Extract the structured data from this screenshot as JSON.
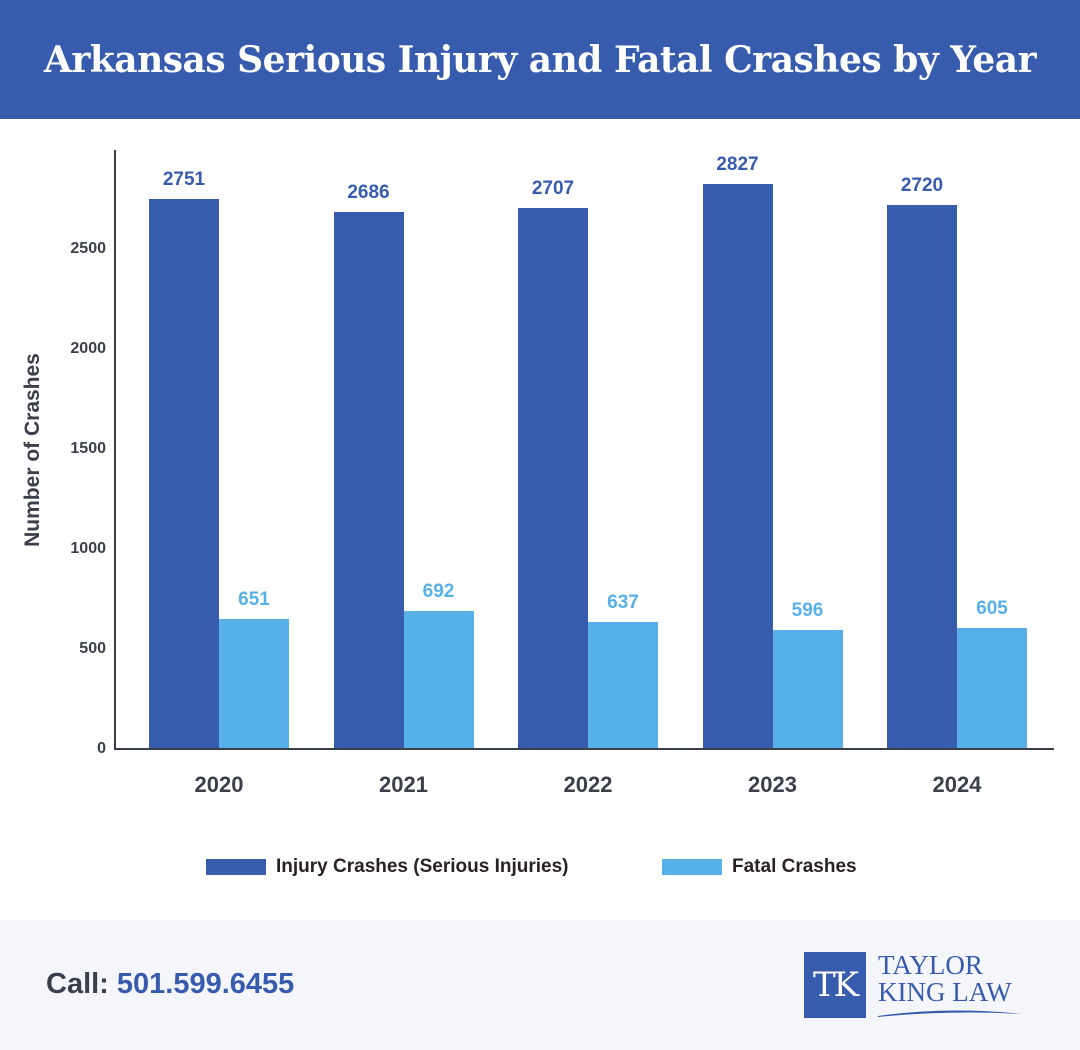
{
  "header": {
    "title": "Arkansas Serious Injury and Fatal Crashes by Year"
  },
  "colors": {
    "injury": "#375cae",
    "fatal": "#58b0e8",
    "header_bg": "#375cae",
    "axis": "#3b3f4b"
  },
  "chart_data": {
    "type": "bar",
    "title": "Arkansas Serious Injury and Fatal Crashes by Year",
    "xlabel": "",
    "ylabel": "Number of Crashes",
    "categories": [
      "2020",
      "2021",
      "2022",
      "2023",
      "2024"
    ],
    "series": [
      {
        "name": "Injury Crashes (Serious Injuries)",
        "values": [
          2751,
          2686,
          2707,
          2827,
          2720
        ]
      },
      {
        "name": "Fatal Crashes",
        "values": [
          651,
          692,
          637,
          596,
          605
        ]
      }
    ],
    "yticks": [
      "0",
      "500",
      "1000",
      "1500",
      "2000",
      "2500"
    ],
    "ylim": [
      0,
      3000
    ],
    "grid": false,
    "legend_position": "bottom"
  },
  "legend": {
    "injury": "Injury Crashes (Serious Injuries)",
    "fatal": "Fatal Crashes"
  },
  "footer": {
    "call_label": "Call:",
    "phone": "501.599.6455",
    "logo_initials": "TK",
    "logo_line1": "TAYLOR",
    "logo_line2": "KING LAW"
  }
}
